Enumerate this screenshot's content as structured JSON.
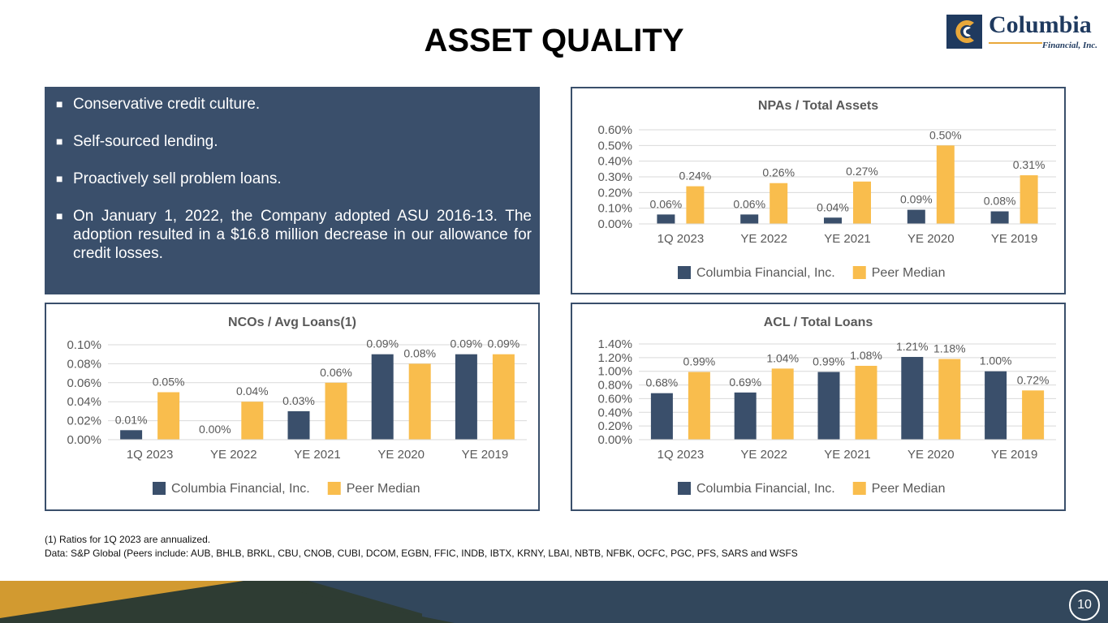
{
  "page": {
    "title": "ASSET QUALITY",
    "logo": {
      "name": "Columbia",
      "sub": "Financial, Inc."
    },
    "page_number": "10",
    "colors": {
      "navy": "#3a4f6b",
      "gold": "#f9bd4d",
      "accent": "#e9a83a"
    }
  },
  "bullets": [
    "Conservative credit culture.",
    "Self-sourced lending.",
    "Proactively sell problem loans.",
    "On January 1, 2022, the Company adopted ASU 2016-13. The adoption resulted in a $16.8 million decrease in our allowance for credit losses."
  ],
  "bullet_marker": "■",
  "footnotes": [
    "(1) Ratios for 1Q 2023 are annualized.",
    "Data: S&P Global (Peers include: AUB, BHLB, BRKL, CBU, CNOB, CUBI, DCOM, EGBN, FFIC, INDB, IBTX, KRNY, LBAI, NBTB, NFBK, OCFC, PGC, PFS, SARS and WSFS"
  ],
  "chart_data": [
    {
      "id": "npa",
      "type": "bar",
      "title": "NPAs / Total Assets",
      "categories": [
        "1Q 2023",
        "YE 2022",
        "YE 2021",
        "YE 2020",
        "YE 2019"
      ],
      "series": [
        {
          "name": "Columbia Financial, Inc.",
          "values": [
            0.06,
            0.06,
            0.04,
            0.09,
            0.08
          ],
          "labels": [
            "0.06%",
            "0.06%",
            "0.04%",
            "0.09%",
            "0.08%"
          ],
          "color": "#3a4f6b"
        },
        {
          "name": "Peer Median",
          "values": [
            0.24,
            0.26,
            0.27,
            0.5,
            0.31
          ],
          "labels": [
            "0.24%",
            "0.26%",
            "0.27%",
            "0.50%",
            "0.31%"
          ],
          "color": "#f9bd4d"
        }
      ],
      "yticks": [
        "0.00%",
        "0.10%",
        "0.20%",
        "0.30%",
        "0.40%",
        "0.50%",
        "0.60%"
      ],
      "ylim": [
        0,
        0.6
      ],
      "grid": true,
      "legend": "bottom"
    },
    {
      "id": "nco",
      "type": "bar",
      "title": "NCOs / Avg Loans(1)",
      "categories": [
        "1Q 2023",
        "YE 2022",
        "YE 2021",
        "YE 2020",
        "YE 2019"
      ],
      "series": [
        {
          "name": "Columbia Financial, Inc.",
          "values": [
            0.01,
            0.0,
            0.03,
            0.09,
            0.09
          ],
          "labels": [
            "0.01%",
            "0.00%",
            "0.03%",
            "0.09%",
            "0.09%"
          ],
          "color": "#3a4f6b"
        },
        {
          "name": "Peer Median",
          "values": [
            0.05,
            0.04,
            0.06,
            0.08,
            0.09
          ],
          "labels": [
            "0.05%",
            "0.04%",
            "0.06%",
            "0.08%",
            "0.09%"
          ],
          "color": "#f9bd4d"
        }
      ],
      "yticks": [
        "0.00%",
        "0.02%",
        "0.04%",
        "0.06%",
        "0.08%",
        "0.10%"
      ],
      "ylim": [
        0,
        0.1
      ],
      "grid": true,
      "legend": "bottom"
    },
    {
      "id": "acl",
      "type": "bar",
      "title": "ACL / Total Loans",
      "categories": [
        "1Q 2023",
        "YE 2022",
        "YE 2021",
        "YE 2020",
        "YE 2019"
      ],
      "series": [
        {
          "name": "Columbia Financial, Inc.",
          "values": [
            0.68,
            0.69,
            0.99,
            1.21,
            1.0
          ],
          "labels": [
            "0.68%",
            "0.69%",
            "0.99%",
            "1.21%",
            "1.00%"
          ],
          "color": "#3a4f6b"
        },
        {
          "name": "Peer Median",
          "values": [
            0.99,
            1.04,
            1.08,
            1.18,
            0.72
          ],
          "labels": [
            "0.99%",
            "1.04%",
            "1.08%",
            "1.18%",
            "0.72%"
          ],
          "color": "#f9bd4d"
        }
      ],
      "yticks": [
        "0.00%",
        "0.20%",
        "0.40%",
        "0.60%",
        "0.80%",
        "1.00%",
        "1.20%",
        "1.40%"
      ],
      "ylim": [
        0,
        1.4
      ],
      "grid": true,
      "legend": "bottom"
    }
  ]
}
